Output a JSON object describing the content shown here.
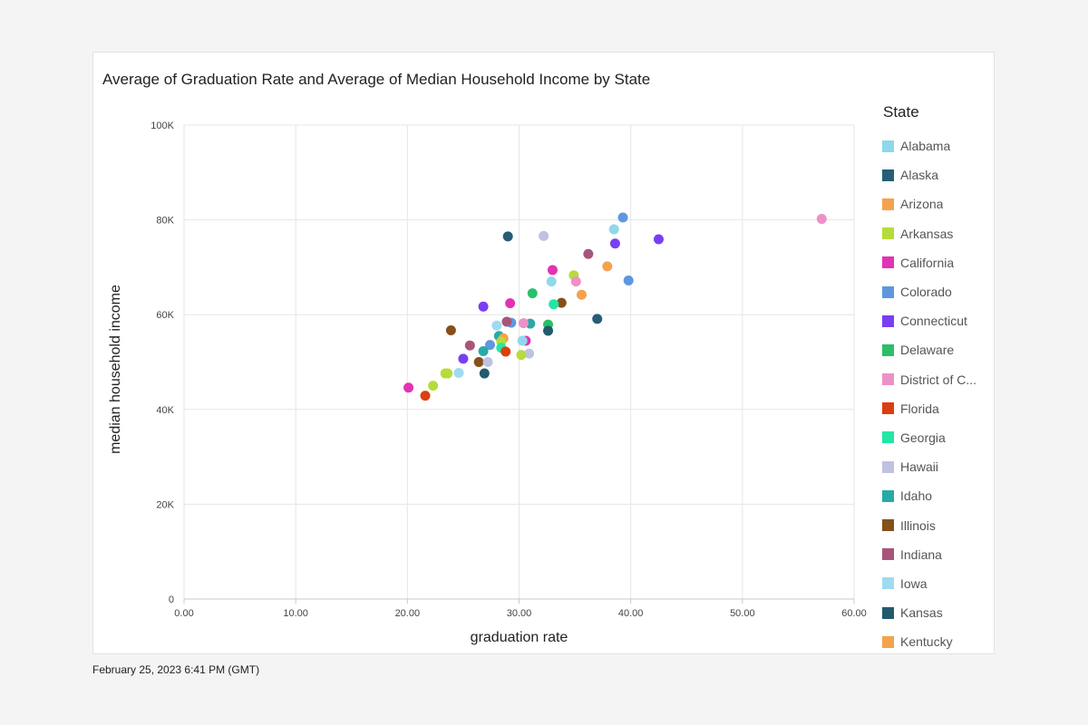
{
  "chart_data": {
    "type": "scatter",
    "title": "Average of Graduation Rate and Average of Median Household Income by State",
    "xlabel": "graduation rate",
    "ylabel": "median household income",
    "xlim": [
      0,
      60
    ],
    "ylim": [
      0,
      100000
    ],
    "x_ticks": [
      0,
      10,
      20,
      30,
      40,
      50,
      60
    ],
    "x_tick_labels": [
      "0.00",
      "10.00",
      "20.00",
      "30.00",
      "40.00",
      "50.00",
      "60.00"
    ],
    "y_ticks": [
      0,
      20000,
      40000,
      60000,
      80000,
      100000
    ],
    "y_tick_labels": [
      "0",
      "20K",
      "40K",
      "60K",
      "80K",
      "100K"
    ],
    "grid": true,
    "legend": {
      "title": "State",
      "placement": "right",
      "entries": [
        {
          "name": "Alabama",
          "color": "#8fd8ea"
        },
        {
          "name": "Alaska",
          "color": "#265e76"
        },
        {
          "name": "Arizona",
          "color": "#f4a24d"
        },
        {
          "name": "Arkansas",
          "color": "#b5dc3b"
        },
        {
          "name": "California",
          "color": "#e233b4"
        },
        {
          "name": "Colorado",
          "color": "#5e97e0"
        },
        {
          "name": "Connecticut",
          "color": "#7a3ff2"
        },
        {
          "name": "Delaware",
          "color": "#2bbf6a"
        },
        {
          "name": "District of C...",
          "color": "#ee90c8"
        },
        {
          "name": "Florida",
          "color": "#dd3e10"
        },
        {
          "name": "Georgia",
          "color": "#23e6a6"
        },
        {
          "name": "Hawaii",
          "color": "#bfc2e0"
        },
        {
          "name": "Idaho",
          "color": "#27aaa7"
        },
        {
          "name": "Illinois",
          "color": "#86501a"
        },
        {
          "name": "Indiana",
          "color": "#a8557a"
        },
        {
          "name": "Iowa",
          "color": "#9edbf0"
        },
        {
          "name": "Kansas",
          "color": "#245a6e"
        },
        {
          "name": "Kentucky",
          "color": "#f4a24d"
        }
      ]
    },
    "points": [
      {
        "x": 57.1,
        "y": 80200,
        "color": "#ee90c8"
      },
      {
        "x": 39.3,
        "y": 80500,
        "color": "#5e97e0"
      },
      {
        "x": 38.5,
        "y": 78000,
        "color": "#8fd8ea"
      },
      {
        "x": 42.5,
        "y": 75900,
        "color": "#7a3ff2"
      },
      {
        "x": 38.6,
        "y": 75000,
        "color": "#7a3ff2"
      },
      {
        "x": 29.0,
        "y": 76500,
        "color": "#265e76"
      },
      {
        "x": 32.2,
        "y": 76600,
        "color": "#bfc2e0"
      },
      {
        "x": 36.2,
        "y": 72800,
        "color": "#a8557a"
      },
      {
        "x": 37.9,
        "y": 70200,
        "color": "#f4a24d"
      },
      {
        "x": 34.9,
        "y": 68300,
        "color": "#b5dc3b"
      },
      {
        "x": 33.0,
        "y": 69400,
        "color": "#e233b4"
      },
      {
        "x": 39.8,
        "y": 67200,
        "color": "#5e97e0"
      },
      {
        "x": 35.1,
        "y": 67000,
        "color": "#ee90c8"
      },
      {
        "x": 32.9,
        "y": 67000,
        "color": "#8fd8ea"
      },
      {
        "x": 31.2,
        "y": 64500,
        "color": "#2bbf6a"
      },
      {
        "x": 35.6,
        "y": 64200,
        "color": "#f4a24d"
      },
      {
        "x": 33.8,
        "y": 62500,
        "color": "#86501a"
      },
      {
        "x": 33.1,
        "y": 62200,
        "color": "#23e6a6"
      },
      {
        "x": 29.2,
        "y": 62400,
        "color": "#e233b4"
      },
      {
        "x": 26.8,
        "y": 61700,
        "color": "#7a3ff2"
      },
      {
        "x": 37.0,
        "y": 59100,
        "color": "#265e76"
      },
      {
        "x": 32.6,
        "y": 57900,
        "color": "#2bbf6a"
      },
      {
        "x": 32.6,
        "y": 56600,
        "color": "#245a6e"
      },
      {
        "x": 31.0,
        "y": 58100,
        "color": "#27aaa7"
      },
      {
        "x": 30.4,
        "y": 58200,
        "color": "#ee90c8"
      },
      {
        "x": 29.3,
        "y": 58300,
        "color": "#5e97e0"
      },
      {
        "x": 28.9,
        "y": 58500,
        "color": "#a8557a"
      },
      {
        "x": 28.0,
        "y": 57700,
        "color": "#9edbf0"
      },
      {
        "x": 23.9,
        "y": 56700,
        "color": "#86501a"
      },
      {
        "x": 28.2,
        "y": 55500,
        "color": "#27aaa7"
      },
      {
        "x": 28.6,
        "y": 55000,
        "color": "#f4a24d"
      },
      {
        "x": 28.4,
        "y": 54300,
        "color": "#b5dc3b"
      },
      {
        "x": 30.6,
        "y": 54500,
        "color": "#e233b4"
      },
      {
        "x": 30.3,
        "y": 54500,
        "color": "#8fd8ea"
      },
      {
        "x": 27.4,
        "y": 53600,
        "color": "#5e97e0"
      },
      {
        "x": 25.6,
        "y": 53500,
        "color": "#a8557a"
      },
      {
        "x": 28.4,
        "y": 53000,
        "color": "#23e6a6"
      },
      {
        "x": 26.8,
        "y": 52300,
        "color": "#27aaa7"
      },
      {
        "x": 28.8,
        "y": 52200,
        "color": "#dd3e10"
      },
      {
        "x": 30.9,
        "y": 51800,
        "color": "#bfc2e0"
      },
      {
        "x": 30.2,
        "y": 51500,
        "color": "#b5dc3b"
      },
      {
        "x": 25.0,
        "y": 50700,
        "color": "#7a3ff2"
      },
      {
        "x": 26.4,
        "y": 50000,
        "color": "#86501a"
      },
      {
        "x": 27.2,
        "y": 50000,
        "color": "#bfc2e0"
      },
      {
        "x": 26.9,
        "y": 47600,
        "color": "#245a6e"
      },
      {
        "x": 24.6,
        "y": 47700,
        "color": "#9edbf0"
      },
      {
        "x": 23.4,
        "y": 47600,
        "color": "#b5dc3b"
      },
      {
        "x": 23.6,
        "y": 47600,
        "color": "#b5dc3b"
      },
      {
        "x": 22.3,
        "y": 45000,
        "color": "#b5dc3b"
      },
      {
        "x": 20.1,
        "y": 44600,
        "color": "#e233b4"
      },
      {
        "x": 21.6,
        "y": 42900,
        "color": "#dd3e10"
      }
    ]
  },
  "footer": {
    "timestamp": "February 25, 2023 6:41 PM (GMT)"
  }
}
